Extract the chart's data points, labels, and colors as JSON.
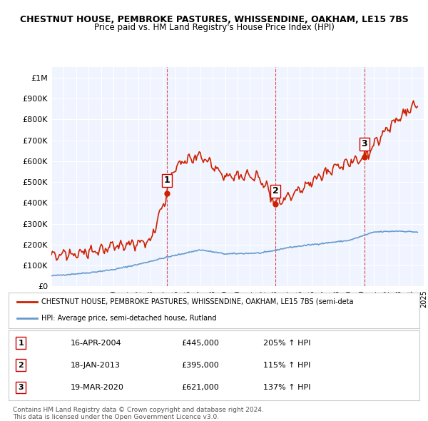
{
  "title_line1": "CHESTNUT HOUSE, PEMBROKE PASTURES, WHISSENDINE, OAKHAM, LE15 7BS",
  "title_line2": "Price paid vs. HM Land Registry's House Price Index (HPI)",
  "ylabel": "",
  "xlim_start": 1995.0,
  "xlim_end": 2025.0,
  "ylim": [
    0,
    1050000
  ],
  "yticks": [
    0,
    100000,
    200000,
    300000,
    400000,
    500000,
    600000,
    700000,
    800000,
    900000,
    1000000
  ],
  "ytick_labels": [
    "£0",
    "£100K",
    "£200K",
    "£300K",
    "£400K",
    "£500K",
    "£600K",
    "£700K",
    "£800K",
    "£900K",
    "£1M"
  ],
  "background_color": "#ffffff",
  "plot_bg_color": "#f0f4ff",
  "grid_color": "#ffffff",
  "hpi_line_color": "#6699cc",
  "price_line_color": "#cc2200",
  "vline_color": "#cc0000",
  "sale_points": [
    {
      "date_year": 2004.29,
      "price": 445000,
      "label": "1"
    },
    {
      "date_year": 2013.05,
      "price": 395000,
      "label": "2"
    },
    {
      "date_year": 2020.22,
      "price": 621000,
      "label": "3"
    }
  ],
  "legend_entries": [
    "CHESTNUT HOUSE, PEMBROKE PASTURES, WHISSENDINE, OAKHAM, LE15 7BS (semi-deta",
    "HPI: Average price, semi-detached house, Rutland"
  ],
  "table_rows": [
    {
      "num": "1",
      "date": "16-APR-2004",
      "price": "£445,000",
      "hpi": "205% ↑ HPI"
    },
    {
      "num": "2",
      "date": "18-JAN-2013",
      "price": "£395,000",
      "hpi": "115% ↑ HPI"
    },
    {
      "num": "3",
      "date": "19-MAR-2020",
      "price": "£621,000",
      "hpi": "137% ↑ HPI"
    }
  ],
  "footer": "Contains HM Land Registry data © Crown copyright and database right 2024.\nThis data is licensed under the Open Government Licence v3.0."
}
